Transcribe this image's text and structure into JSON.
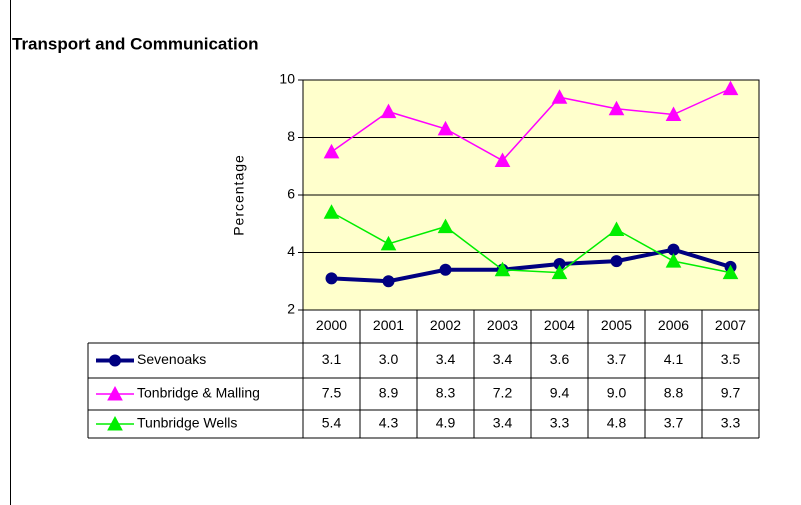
{
  "chart_data": {
    "type": "line",
    "title": "Transport and Communication",
    "y_label": "Percentage",
    "categories": [
      "2000",
      "2001",
      "2002",
      "2003",
      "2004",
      "2005",
      "2006",
      "2007"
    ],
    "series": [
      {
        "name": "Sevenoaks",
        "color": "#000080",
        "marker": "circle",
        "values": [
          3.1,
          3.0,
          3.4,
          3.4,
          3.6,
          3.7,
          4.1,
          3.5
        ],
        "value_labels": [
          "3.1",
          "3.0",
          "3.4",
          "3.4",
          "3.6",
          "3.7",
          "4.1",
          "3.5"
        ]
      },
      {
        "name": "Tonbridge & Malling",
        "color": "#ff00ff",
        "marker": "triangle",
        "values": [
          7.5,
          8.9,
          8.3,
          7.2,
          9.4,
          9.0,
          8.8,
          9.7
        ],
        "value_labels": [
          "7.5",
          "8.9",
          "8.3",
          "7.2",
          "9.4",
          "9.0",
          "8.8",
          "9.7"
        ]
      },
      {
        "name": "Tunbridge Wells",
        "color": "#00ee00",
        "marker": "triangle",
        "values": [
          5.4,
          4.3,
          4.9,
          3.4,
          3.3,
          4.8,
          3.7,
          3.3
        ],
        "value_labels": [
          "5.4",
          "4.3",
          "4.9",
          "3.4",
          "3.3",
          "4.8",
          "3.7",
          "3.3"
        ]
      }
    ],
    "ylim": [
      2,
      10
    ],
    "yticks": [
      2,
      4,
      6,
      8,
      10
    ],
    "grid": true,
    "plot_background": "#ffffcc",
    "data_table": true
  }
}
